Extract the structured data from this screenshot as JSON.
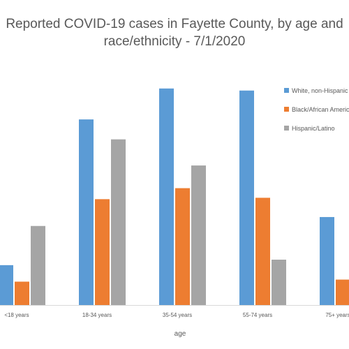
{
  "chart_data": {
    "type": "bar",
    "title": "Reported COVID-19 cases in Fayette County, by age and\nrace/ethnicity - 7/1/2020",
    "xlabel": "age",
    "ylabel": "",
    "categories": [
      "<18 years",
      "18-34 years",
      "35-54 years",
      "55-74 years",
      "75+ years"
    ],
    "series": [
      {
        "name": "White, non-Hispanic",
        "values": [
          58,
          270,
          315,
          312,
          128
        ]
      },
      {
        "name": "Black/African American",
        "values": [
          34,
          154,
          170,
          156,
          37
        ]
      },
      {
        "name": "Hispanic/Latino",
        "values": [
          115,
          241,
          203,
          66,
          0
        ]
      }
    ],
    "ylim": [
      0,
      330
    ],
    "grid": false,
    "legend": "right",
    "colors": [
      "#5b9bd5",
      "#ed7d31",
      "#a5a5a5"
    ]
  }
}
